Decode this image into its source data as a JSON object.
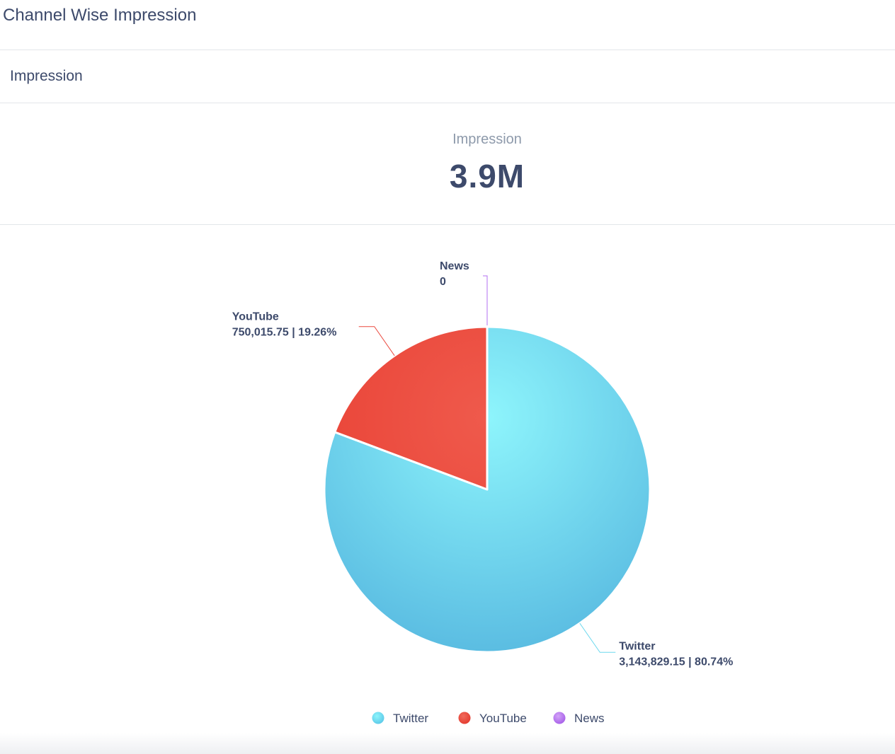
{
  "header": {
    "title": "Channel Wise Impression"
  },
  "section": {
    "title": "Impression"
  },
  "kpi": {
    "label": "Impression",
    "value": "3.9M"
  },
  "colors": {
    "twitter": "#6dd8ee",
    "youtube": "#ea4a3f",
    "news": "#b36ff0"
  },
  "chart_data": {
    "type": "pie",
    "slices": [
      {
        "name": "Twitter",
        "value": 3143829.15,
        "value_label": "3,143,829.15",
        "percent_label": "80.74%",
        "color": "#6dd8ee"
      },
      {
        "name": "YouTube",
        "value": 750015.75,
        "value_label": "750,015.75",
        "percent_label": "19.26%",
        "color": "#ea4a3f"
      },
      {
        "name": "News",
        "value": 0,
        "value_label": "0",
        "percent_label": "",
        "color": "#b36ff0"
      }
    ],
    "legend": [
      "Twitter",
      "YouTube",
      "News"
    ],
    "legend_position": "bottom-center"
  }
}
